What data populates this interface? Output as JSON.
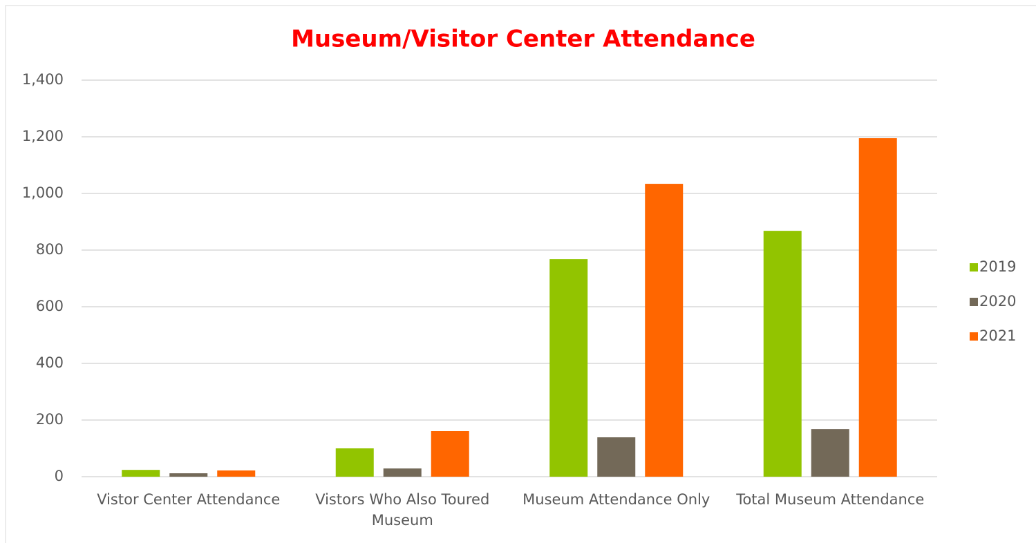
{
  "chart_data": {
    "type": "bar",
    "title": "Museum/Visitor Center Attendance",
    "categories": [
      "Vistor Center Attendance",
      "Vistors Who Also Toured Museum",
      "Museum Attendance Only",
      "Total Museum Attendance"
    ],
    "series": [
      {
        "name": "2019",
        "color": "#92c400",
        "values": [
          24,
          100,
          768,
          868
        ]
      },
      {
        "name": "2020",
        "color": "#736958",
        "values": [
          12,
          29,
          139,
          168
        ]
      },
      {
        "name": "2021",
        "color": "#ff6600",
        "values": [
          22,
          161,
          1034,
          1195
        ]
      }
    ],
    "ylim": [
      0,
      1400
    ],
    "yticks": [
      0,
      200,
      400,
      600,
      800,
      {
        "value": 1000,
        "label": "1,000"
      },
      {
        "value": 1200,
        "label": "1,200"
      },
      {
        "value": 1400,
        "label": "1,400"
      }
    ],
    "grid": true,
    "legend": "right"
  }
}
